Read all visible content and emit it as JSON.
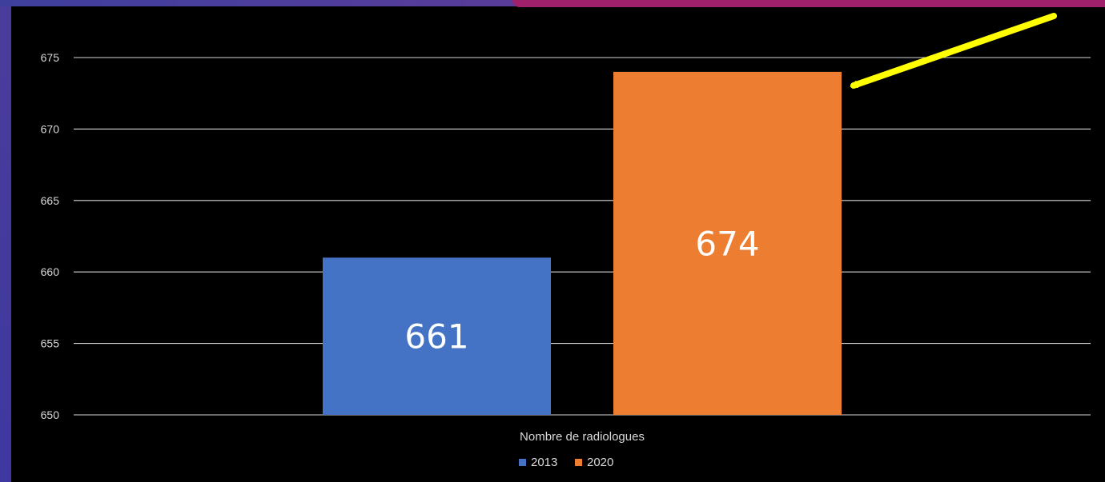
{
  "chart_data": {
    "type": "bar",
    "title": "",
    "xlabel": "",
    "ylabel": "",
    "categories": [
      "Nombre de radiologues"
    ],
    "series": [
      {
        "name": "2013",
        "values": [
          661
        ],
        "color": "#4472c4"
      },
      {
        "name": "2020",
        "values": [
          674
        ],
        "color": "#ed7d31"
      }
    ],
    "ylim": [
      650,
      675
    ],
    "yticks": [
      "650",
      "655",
      "660",
      "665",
      "670",
      "675"
    ],
    "grid": true,
    "legend_position": "bottom",
    "data_labels": [
      "661",
      "674"
    ],
    "annotation": {
      "type": "arrow",
      "color": "#ffff00",
      "points_to": "2020"
    }
  }
}
